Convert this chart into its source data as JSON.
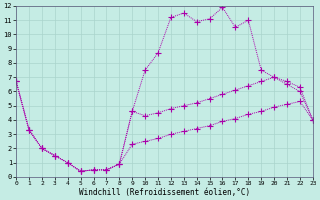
{
  "bg_color": "#c5ece4",
  "grid_color": "#aad4cc",
  "line_color": "#aa00aa",
  "xlabel": "Windchill (Refroidissement éolien,°C)",
  "xlim": [
    0,
    23
  ],
  "ylim": [
    0,
    12
  ],
  "xticks": [
    0,
    1,
    2,
    3,
    4,
    5,
    6,
    7,
    8,
    9,
    10,
    11,
    12,
    13,
    14,
    15,
    16,
    17,
    18,
    19,
    20,
    21,
    22,
    23
  ],
  "yticks": [
    0,
    1,
    2,
    3,
    4,
    5,
    6,
    7,
    8,
    9,
    10,
    11,
    12
  ],
  "line_top_x": [
    0,
    1,
    2,
    3,
    4,
    5,
    6,
    7,
    8,
    9,
    10,
    11,
    12,
    13,
    14,
    15,
    16,
    17,
    18,
    19,
    20,
    21,
    22,
    23
  ],
  "line_top_y": [
    6.7,
    3.3,
    2.0,
    1.5,
    1.0,
    0.4,
    0.5,
    0.5,
    0.9,
    4.6,
    7.5,
    8.7,
    11.2,
    11.5,
    10.9,
    11.1,
    11.9,
    10.5,
    11.0,
    7.5,
    7.0,
    6.5,
    6.0,
    4.0
  ],
  "line_mid_x": [
    0,
    1,
    2,
    3,
    4,
    5,
    6,
    7,
    8,
    9,
    10,
    11,
    12,
    13,
    14,
    15,
    16,
    17,
    18,
    19,
    20,
    21,
    22,
    23
  ],
  "line_mid_y": [
    6.7,
    3.3,
    2.0,
    1.5,
    1.0,
    0.4,
    0.5,
    0.5,
    0.9,
    4.6,
    4.3,
    4.5,
    4.8,
    5.0,
    5.2,
    5.5,
    5.8,
    6.1,
    6.4,
    6.7,
    7.0,
    6.7,
    6.3,
    4.0
  ],
  "line_bot_x": [
    0,
    1,
    2,
    3,
    4,
    5,
    6,
    7,
    8,
    9,
    10,
    11,
    12,
    13,
    14,
    15,
    16,
    17,
    18,
    19,
    20,
    21,
    22,
    23
  ],
  "line_bot_y": [
    6.7,
    3.3,
    2.0,
    1.5,
    1.0,
    0.4,
    0.5,
    0.5,
    0.9,
    2.3,
    2.5,
    2.7,
    3.0,
    3.2,
    3.4,
    3.6,
    3.9,
    4.1,
    4.4,
    4.6,
    4.9,
    5.1,
    5.3,
    4.0
  ]
}
